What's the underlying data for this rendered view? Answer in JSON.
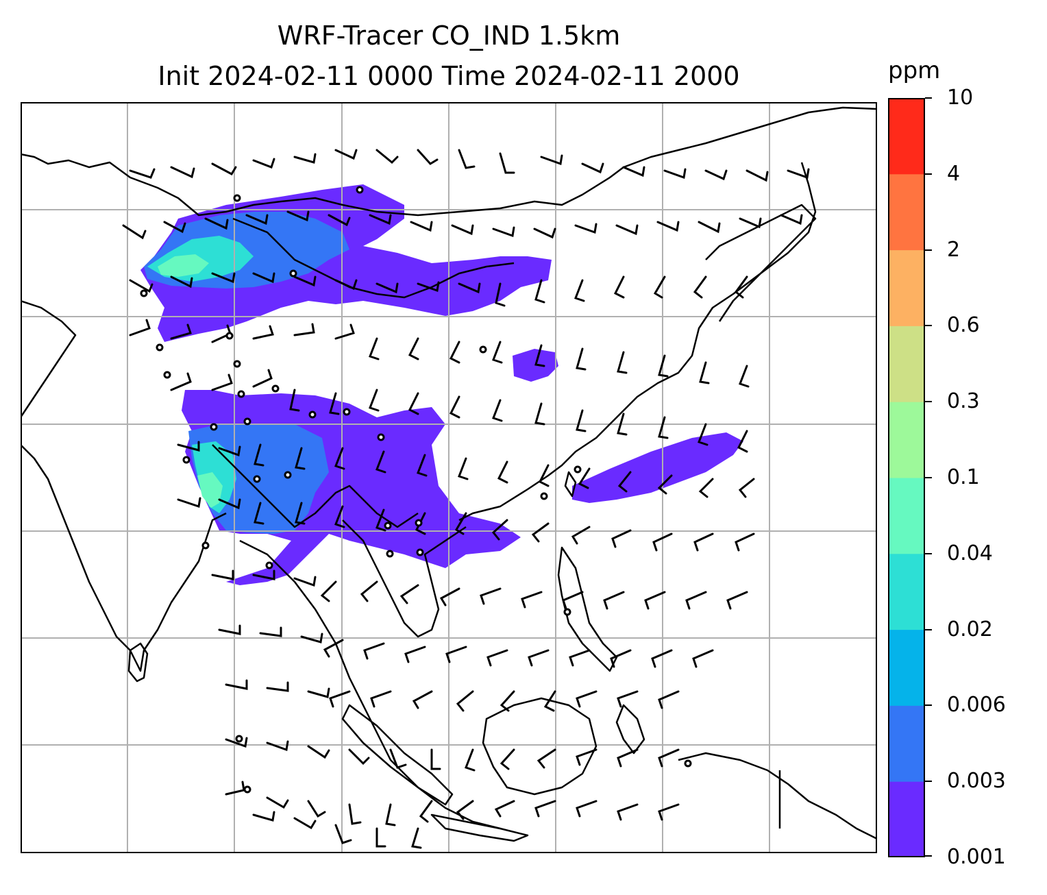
{
  "title": {
    "line1": "WRF-Tracer CO_IND 1.5km",
    "line2": "Init 2024-02-11 0000 Time 2024-02-11 2000"
  },
  "colorbar": {
    "unit": "ppm",
    "tick_labels": [
      "0.001",
      "0.003",
      "0.006",
      "0.02",
      "0.04",
      "0.1",
      "0.3",
      "0.6",
      "2",
      "4",
      "10"
    ],
    "colors": [
      "#6a2bff",
      "#3476f5",
      "#05b3ea",
      "#2ddfd5",
      "#66f9c0",
      "#9df99a",
      "#cde086",
      "#fdb162",
      "#ff7440",
      "#ff2a1a"
    ]
  },
  "map": {
    "land_outline_color": "#000000",
    "gridline_color": "#b0b0b0",
    "wind_barb_color": "#000000",
    "tracer_field_levels": [
      "0.001",
      "0.003",
      "0.006",
      "0.02",
      "0.04",
      "0.1"
    ]
  }
}
